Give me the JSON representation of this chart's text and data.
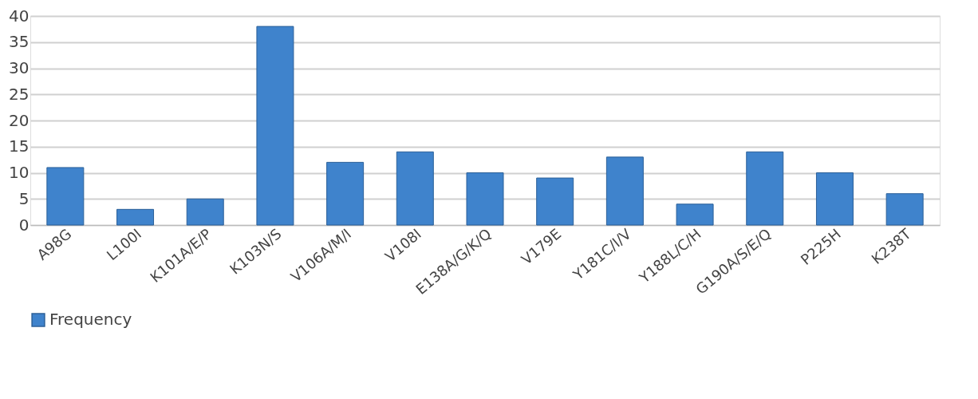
{
  "chart_data": {
    "type": "bar",
    "categories": [
      "A98G",
      "L100I",
      "K101A/E/P",
      "K103N/S",
      "V106A/M/I",
      "V108I",
      "E138A/G/K/Q",
      "V179E",
      "Y181C/I/V",
      "Y188L/C/H",
      "G190A/S/E/Q",
      "P225H",
      "K238T"
    ],
    "series": [
      {
        "name": "Frequency",
        "color": "#3f83cc",
        "values": [
          11,
          3,
          5,
          38,
          12,
          14,
          10,
          9,
          13,
          4,
          14,
          10,
          6
        ]
      }
    ],
    "ylim": [
      0,
      40
    ],
    "yticks": [
      0,
      5,
      10,
      15,
      20,
      25,
      30,
      35,
      40
    ],
    "grid": "y",
    "legend": "bottom"
  }
}
